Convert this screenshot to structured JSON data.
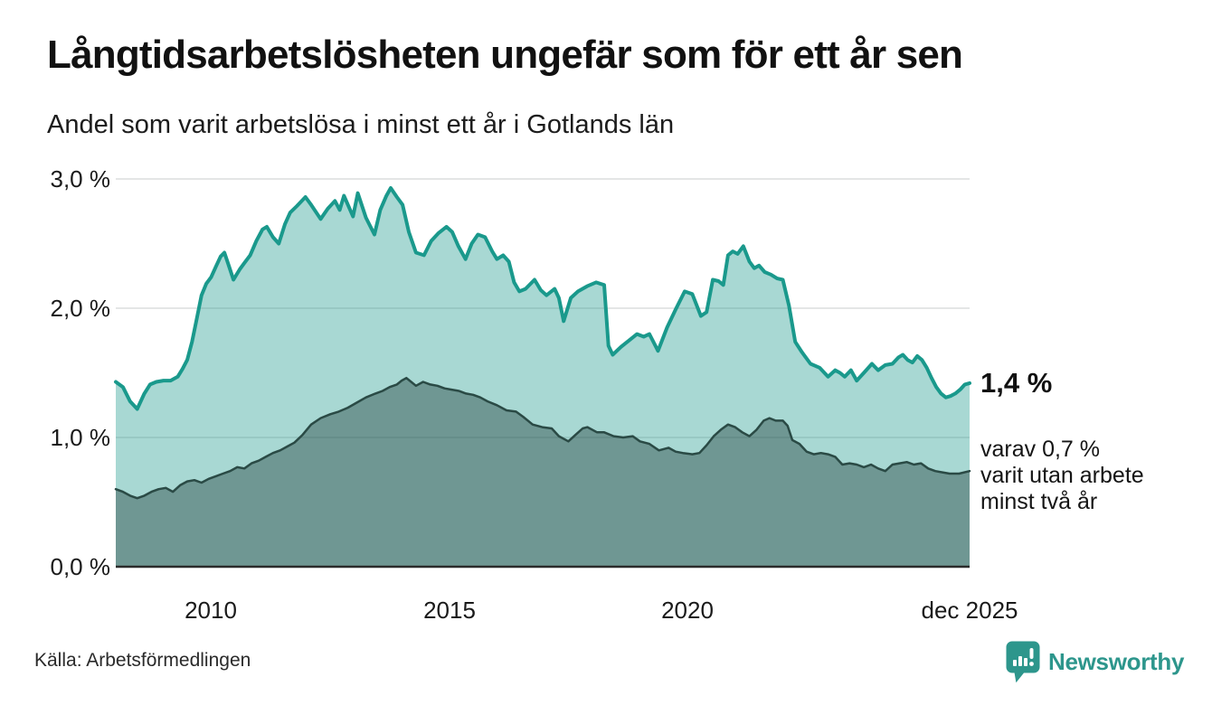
{
  "header": {
    "title": "Långtidsarbetslösheten ungefär som för ett år sen",
    "subtitle": "Andel som varit arbetslösa i minst ett år i Gotlands län"
  },
  "annotations": {
    "end_value_label": "1,4 %",
    "secondary_lines": [
      "varav 0,7 %",
      "varit utan arbete",
      "minst två år"
    ]
  },
  "footer": {
    "source": "Källa: Arbetsförmedlingen",
    "brand_name": "Newsworthy"
  },
  "colors": {
    "line_total": "#1a998c",
    "fill_total": "rgba(26,153,140,0.38)",
    "line_two_years": "#2a4a45",
    "fill_two_years": "rgba(42,74,69,0.45)",
    "grid": "#dcdedd",
    "axis": "#2b2b2b",
    "brand": "#2d968c",
    "text": "#141414"
  },
  "chart_data": {
    "type": "area",
    "title": "Långtidsarbetslösheten ungefär som för ett år sen",
    "subtitle": "Andel som varit arbetslösa i minst ett år i Gotlands län",
    "unit": "%",
    "grid": true,
    "legend_position": "none",
    "x_range": [
      2008.0,
      2025.92
    ],
    "y_range": [
      0,
      3.0
    ],
    "y_ticks": [
      {
        "value": 3.0,
        "label": "3,0 %"
      },
      {
        "value": 2.0,
        "label": "2,0 %"
      },
      {
        "value": 1.0,
        "label": "1,0 %"
      },
      {
        "value": 0.0,
        "label": "0,0 %"
      }
    ],
    "x_ticks": [
      {
        "value": 2010,
        "label": "2010"
      },
      {
        "value": 2015,
        "label": "2015"
      },
      {
        "value": 2020,
        "label": "2020"
      },
      {
        "value": 2025.92,
        "label": "dec 2025"
      }
    ],
    "series": [
      {
        "id": "minst-ett-ar",
        "name": "Andel arbetslösa minst ett år",
        "end_label": "1,4 %",
        "end_value": 1.4,
        "color": "#1a998c",
        "fill": "rgba(26,153,140,0.38)",
        "points": [
          [
            2008.0,
            1.43
          ],
          [
            2008.15,
            1.39
          ],
          [
            2008.3,
            1.28
          ],
          [
            2008.45,
            1.22
          ],
          [
            2008.6,
            1.34
          ],
          [
            2008.72,
            1.41
          ],
          [
            2008.85,
            1.43
          ],
          [
            2009.0,
            1.44
          ],
          [
            2009.15,
            1.44
          ],
          [
            2009.3,
            1.47
          ],
          [
            2009.4,
            1.53
          ],
          [
            2009.5,
            1.6
          ],
          [
            2009.6,
            1.74
          ],
          [
            2009.7,
            1.92
          ],
          [
            2009.8,
            2.1
          ],
          [
            2009.9,
            2.19
          ],
          [
            2010.0,
            2.24
          ],
          [
            2010.1,
            2.32
          ],
          [
            2010.2,
            2.4
          ],
          [
            2010.28,
            2.43
          ],
          [
            2010.38,
            2.32
          ],
          [
            2010.47,
            2.22
          ],
          [
            2010.6,
            2.3
          ],
          [
            2010.7,
            2.35
          ],
          [
            2010.82,
            2.41
          ],
          [
            2010.95,
            2.52
          ],
          [
            2011.08,
            2.61
          ],
          [
            2011.17,
            2.63
          ],
          [
            2011.3,
            2.55
          ],
          [
            2011.42,
            2.5
          ],
          [
            2011.55,
            2.65
          ],
          [
            2011.66,
            2.74
          ],
          [
            2011.8,
            2.79
          ],
          [
            2011.98,
            2.86
          ],
          [
            2012.1,
            2.8
          ],
          [
            2012.3,
            2.69
          ],
          [
            2012.45,
            2.77
          ],
          [
            2012.6,
            2.83
          ],
          [
            2012.7,
            2.76
          ],
          [
            2012.79,
            2.87
          ],
          [
            2012.98,
            2.71
          ],
          [
            2013.08,
            2.89
          ],
          [
            2013.25,
            2.7
          ],
          [
            2013.43,
            2.57
          ],
          [
            2013.55,
            2.76
          ],
          [
            2013.68,
            2.87
          ],
          [
            2013.77,
            2.93
          ],
          [
            2013.9,
            2.86
          ],
          [
            2014.02,
            2.8
          ],
          [
            2014.15,
            2.59
          ],
          [
            2014.3,
            2.43
          ],
          [
            2014.47,
            2.41
          ],
          [
            2014.62,
            2.52
          ],
          [
            2014.77,
            2.58
          ],
          [
            2014.94,
            2.63
          ],
          [
            2015.06,
            2.59
          ],
          [
            2015.19,
            2.48
          ],
          [
            2015.34,
            2.38
          ],
          [
            2015.47,
            2.5
          ],
          [
            2015.6,
            2.57
          ],
          [
            2015.75,
            2.55
          ],
          [
            2015.9,
            2.44
          ],
          [
            2016.0,
            2.38
          ],
          [
            2016.13,
            2.41
          ],
          [
            2016.25,
            2.36
          ],
          [
            2016.36,
            2.2
          ],
          [
            2016.47,
            2.13
          ],
          [
            2016.6,
            2.15
          ],
          [
            2016.79,
            2.22
          ],
          [
            2016.92,
            2.14
          ],
          [
            2017.04,
            2.1
          ],
          [
            2017.21,
            2.15
          ],
          [
            2017.3,
            2.08
          ],
          [
            2017.4,
            1.9
          ],
          [
            2017.55,
            2.08
          ],
          [
            2017.7,
            2.13
          ],
          [
            2017.89,
            2.17
          ],
          [
            2018.08,
            2.2
          ],
          [
            2018.25,
            2.18
          ],
          [
            2018.34,
            1.71
          ],
          [
            2018.43,
            1.64
          ],
          [
            2018.6,
            1.7
          ],
          [
            2018.77,
            1.75
          ],
          [
            2018.94,
            1.8
          ],
          [
            2019.08,
            1.78
          ],
          [
            2019.2,
            1.8
          ],
          [
            2019.38,
            1.67
          ],
          [
            2019.57,
            1.85
          ],
          [
            2019.75,
            1.99
          ],
          [
            2019.94,
            2.13
          ],
          [
            2020.1,
            2.11
          ],
          [
            2020.28,
            1.94
          ],
          [
            2020.4,
            1.97
          ],
          [
            2020.53,
            2.22
          ],
          [
            2020.65,
            2.21
          ],
          [
            2020.75,
            2.18
          ],
          [
            2020.85,
            2.41
          ],
          [
            2020.95,
            2.44
          ],
          [
            2021.05,
            2.42
          ],
          [
            2021.17,
            2.48
          ],
          [
            2021.3,
            2.36
          ],
          [
            2021.4,
            2.31
          ],
          [
            2021.5,
            2.33
          ],
          [
            2021.62,
            2.28
          ],
          [
            2021.75,
            2.26
          ],
          [
            2021.88,
            2.23
          ],
          [
            2022.0,
            2.22
          ],
          [
            2022.13,
            2.02
          ],
          [
            2022.26,
            1.74
          ],
          [
            2022.4,
            1.66
          ],
          [
            2022.58,
            1.57
          ],
          [
            2022.77,
            1.54
          ],
          [
            2022.95,
            1.47
          ],
          [
            2023.1,
            1.52
          ],
          [
            2023.2,
            1.5
          ],
          [
            2023.3,
            1.47
          ],
          [
            2023.43,
            1.52
          ],
          [
            2023.55,
            1.44
          ],
          [
            2023.7,
            1.5
          ],
          [
            2023.87,
            1.57
          ],
          [
            2024.0,
            1.52
          ],
          [
            2024.15,
            1.56
          ],
          [
            2024.3,
            1.57
          ],
          [
            2024.43,
            1.62
          ],
          [
            2024.52,
            1.64
          ],
          [
            2024.62,
            1.6
          ],
          [
            2024.72,
            1.58
          ],
          [
            2024.82,
            1.63
          ],
          [
            2024.92,
            1.6
          ],
          [
            2025.02,
            1.54
          ],
          [
            2025.12,
            1.46
          ],
          [
            2025.22,
            1.39
          ],
          [
            2025.32,
            1.34
          ],
          [
            2025.42,
            1.31
          ],
          [
            2025.52,
            1.32
          ],
          [
            2025.62,
            1.34
          ],
          [
            2025.72,
            1.37
          ],
          [
            2025.82,
            1.41
          ],
          [
            2025.92,
            1.42
          ]
        ]
      },
      {
        "id": "minst-tva-ar",
        "name": "Andel arbetslösa minst två år",
        "end_label": "varav 0,7 % varit utan arbete minst två år",
        "end_value": 0.7,
        "color": "#2a4a45",
        "fill": "rgba(42,74,69,0.45)",
        "points": [
          [
            2008.0,
            0.6
          ],
          [
            2008.15,
            0.58
          ],
          [
            2008.3,
            0.55
          ],
          [
            2008.45,
            0.53
          ],
          [
            2008.6,
            0.55
          ],
          [
            2008.75,
            0.58
          ],
          [
            2008.9,
            0.6
          ],
          [
            2009.05,
            0.61
          ],
          [
            2009.2,
            0.58
          ],
          [
            2009.35,
            0.63
          ],
          [
            2009.5,
            0.66
          ],
          [
            2009.65,
            0.67
          ],
          [
            2009.8,
            0.65
          ],
          [
            2009.95,
            0.68
          ],
          [
            2010.1,
            0.7
          ],
          [
            2010.25,
            0.72
          ],
          [
            2010.4,
            0.74
          ],
          [
            2010.55,
            0.77
          ],
          [
            2010.7,
            0.76
          ],
          [
            2010.85,
            0.8
          ],
          [
            2011.0,
            0.82
          ],
          [
            2011.15,
            0.85
          ],
          [
            2011.3,
            0.88
          ],
          [
            2011.45,
            0.9
          ],
          [
            2011.6,
            0.93
          ],
          [
            2011.75,
            0.96
          ],
          [
            2011.92,
            1.02
          ],
          [
            2012.1,
            1.1
          ],
          [
            2012.3,
            1.15
          ],
          [
            2012.5,
            1.18
          ],
          [
            2012.68,
            1.2
          ],
          [
            2012.87,
            1.23
          ],
          [
            2013.06,
            1.27
          ],
          [
            2013.25,
            1.31
          ],
          [
            2013.45,
            1.34
          ],
          [
            2013.6,
            1.36
          ],
          [
            2013.75,
            1.39
          ],
          [
            2013.9,
            1.41
          ],
          [
            2014.0,
            1.44
          ],
          [
            2014.1,
            1.46
          ],
          [
            2014.2,
            1.43
          ],
          [
            2014.3,
            1.4
          ],
          [
            2014.45,
            1.43
          ],
          [
            2014.6,
            1.41
          ],
          [
            2014.75,
            1.4
          ],
          [
            2014.9,
            1.38
          ],
          [
            2015.05,
            1.37
          ],
          [
            2015.2,
            1.36
          ],
          [
            2015.35,
            1.34
          ],
          [
            2015.5,
            1.33
          ],
          [
            2015.65,
            1.31
          ],
          [
            2015.8,
            1.28
          ],
          [
            2016.0,
            1.25
          ],
          [
            2016.2,
            1.21
          ],
          [
            2016.4,
            1.2
          ],
          [
            2016.55,
            1.16
          ],
          [
            2016.75,
            1.1
          ],
          [
            2016.95,
            1.08
          ],
          [
            2017.15,
            1.07
          ],
          [
            2017.3,
            1.01
          ],
          [
            2017.5,
            0.97
          ],
          [
            2017.65,
            1.02
          ],
          [
            2017.8,
            1.07
          ],
          [
            2017.9,
            1.08
          ],
          [
            2018.1,
            1.04
          ],
          [
            2018.25,
            1.04
          ],
          [
            2018.45,
            1.01
          ],
          [
            2018.65,
            1.0
          ],
          [
            2018.85,
            1.01
          ],
          [
            2019.0,
            0.97
          ],
          [
            2019.2,
            0.95
          ],
          [
            2019.4,
            0.9
          ],
          [
            2019.6,
            0.92
          ],
          [
            2019.75,
            0.89
          ],
          [
            2019.9,
            0.88
          ],
          [
            2020.1,
            0.87
          ],
          [
            2020.25,
            0.88
          ],
          [
            2020.4,
            0.94
          ],
          [
            2020.55,
            1.01
          ],
          [
            2020.7,
            1.06
          ],
          [
            2020.85,
            1.1
          ],
          [
            2021.0,
            1.08
          ],
          [
            2021.15,
            1.04
          ],
          [
            2021.3,
            1.01
          ],
          [
            2021.45,
            1.06
          ],
          [
            2021.6,
            1.13
          ],
          [
            2021.72,
            1.15
          ],
          [
            2021.85,
            1.13
          ],
          [
            2022.0,
            1.13
          ],
          [
            2022.1,
            1.09
          ],
          [
            2022.2,
            0.98
          ],
          [
            2022.35,
            0.95
          ],
          [
            2022.5,
            0.89
          ],
          [
            2022.65,
            0.87
          ],
          [
            2022.8,
            0.88
          ],
          [
            2022.95,
            0.87
          ],
          [
            2023.1,
            0.85
          ],
          [
            2023.25,
            0.79
          ],
          [
            2023.4,
            0.8
          ],
          [
            2023.55,
            0.79
          ],
          [
            2023.7,
            0.77
          ],
          [
            2023.85,
            0.79
          ],
          [
            2024.0,
            0.76
          ],
          [
            2024.15,
            0.74
          ],
          [
            2024.3,
            0.79
          ],
          [
            2024.45,
            0.8
          ],
          [
            2024.6,
            0.81
          ],
          [
            2024.75,
            0.79
          ],
          [
            2024.9,
            0.8
          ],
          [
            2025.05,
            0.76
          ],
          [
            2025.2,
            0.74
          ],
          [
            2025.35,
            0.73
          ],
          [
            2025.5,
            0.72
          ],
          [
            2025.7,
            0.72
          ],
          [
            2025.92,
            0.74
          ]
        ]
      }
    ]
  }
}
